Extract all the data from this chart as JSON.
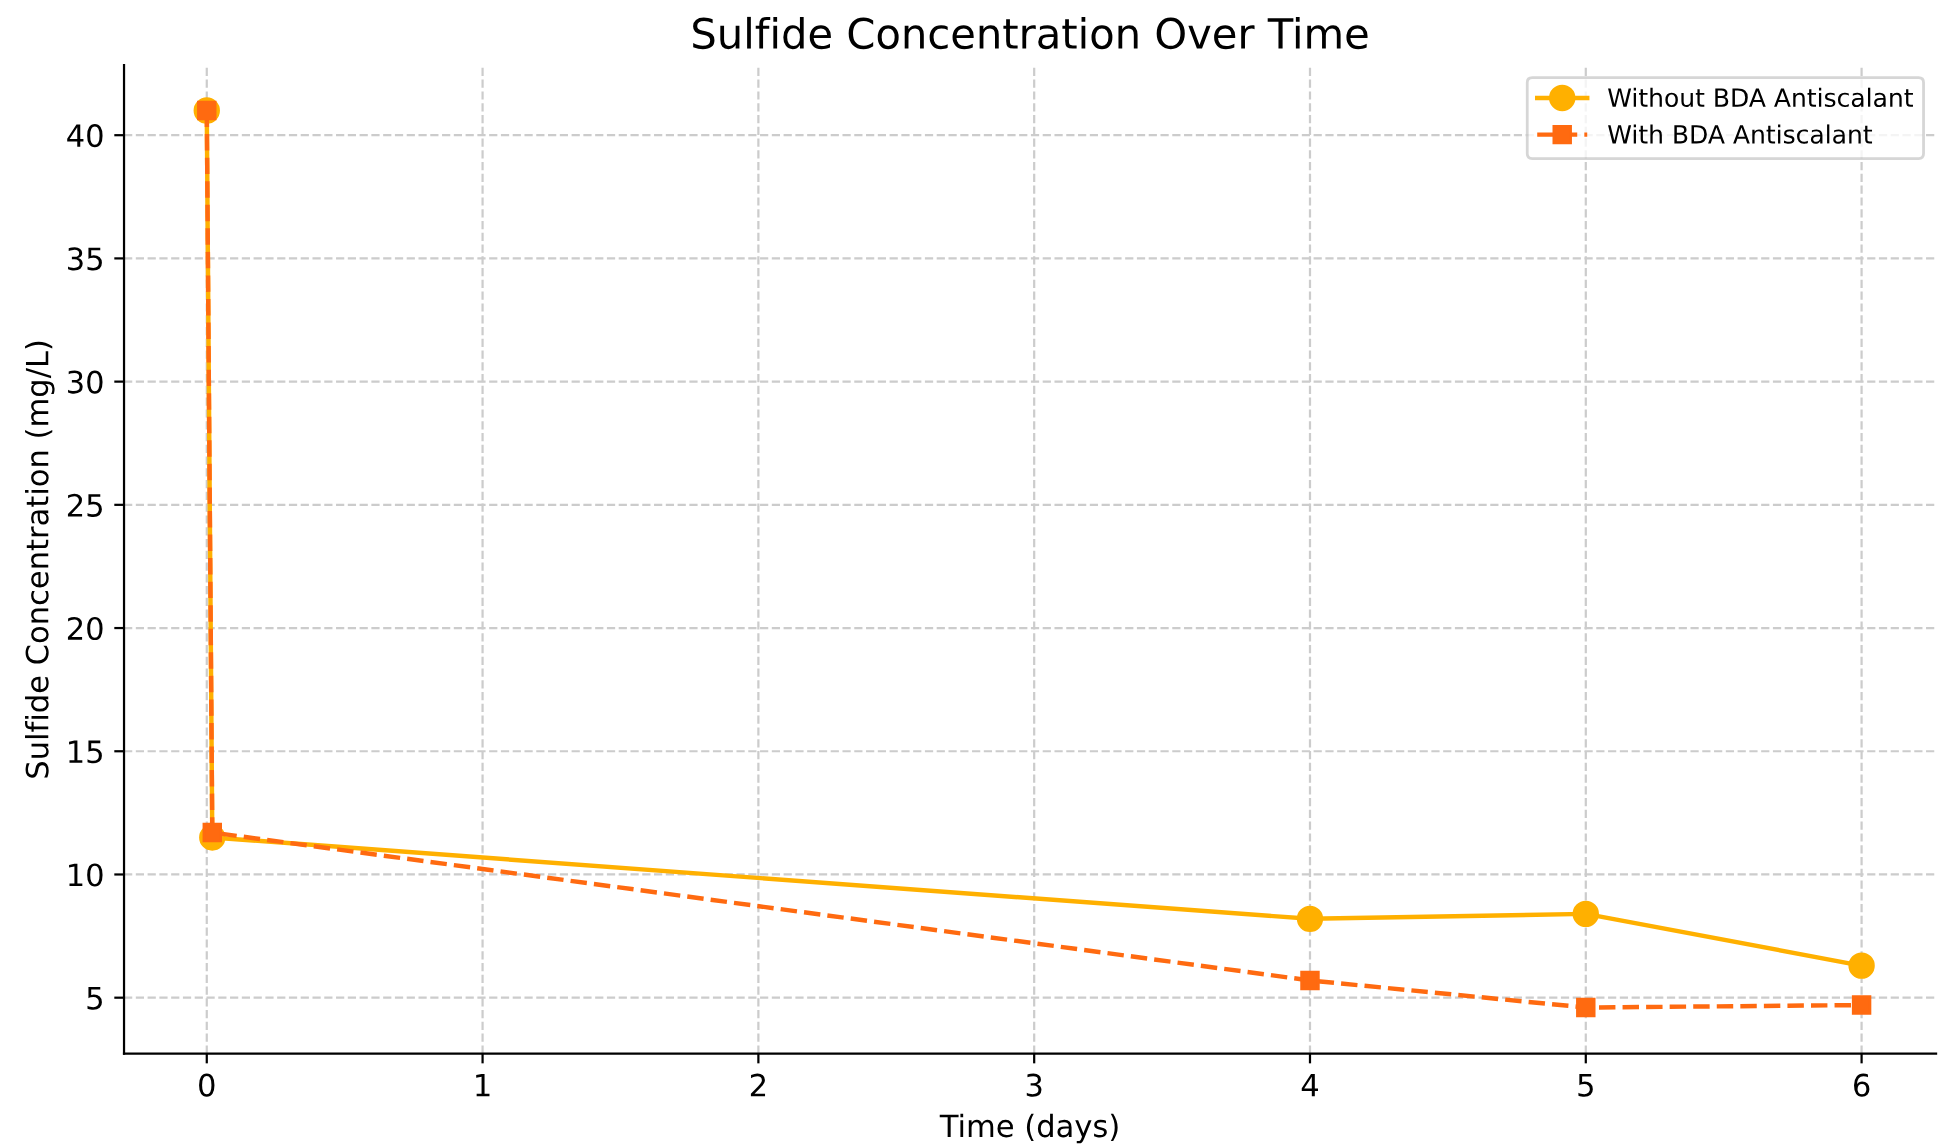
{
  "chart_data": {
    "type": "line",
    "title": "Sulfide Concentration Over Time",
    "xlabel": "Time (days)",
    "ylabel": "Sulfide Concentration (mg/L)",
    "series": [
      {
        "name": "Without BDA Antiscalant",
        "color": "#ffb000",
        "marker": "circle",
        "line_style": "solid",
        "x": [
          0,
          0.02,
          4,
          5,
          6
        ],
        "values": [
          41.0,
          11.5,
          8.2,
          8.4,
          6.3
        ]
      },
      {
        "name": "With BDA Antiscalant",
        "color": "#ff6a10",
        "marker": "square",
        "line_style": "dashed",
        "x": [
          0,
          0.02,
          4,
          5,
          6
        ],
        "values": [
          41.0,
          11.7,
          5.7,
          4.6,
          4.7
        ]
      }
    ],
    "xlim": [
      -0.3,
      6.27
    ],
    "ylim": [
      2.73,
      42.84
    ],
    "xticks": [
      0,
      1,
      2,
      3,
      4,
      5,
      6
    ],
    "yticks": [
      5,
      10,
      15,
      20,
      25,
      30,
      35,
      40
    ],
    "grid": true,
    "legend": "top right"
  }
}
